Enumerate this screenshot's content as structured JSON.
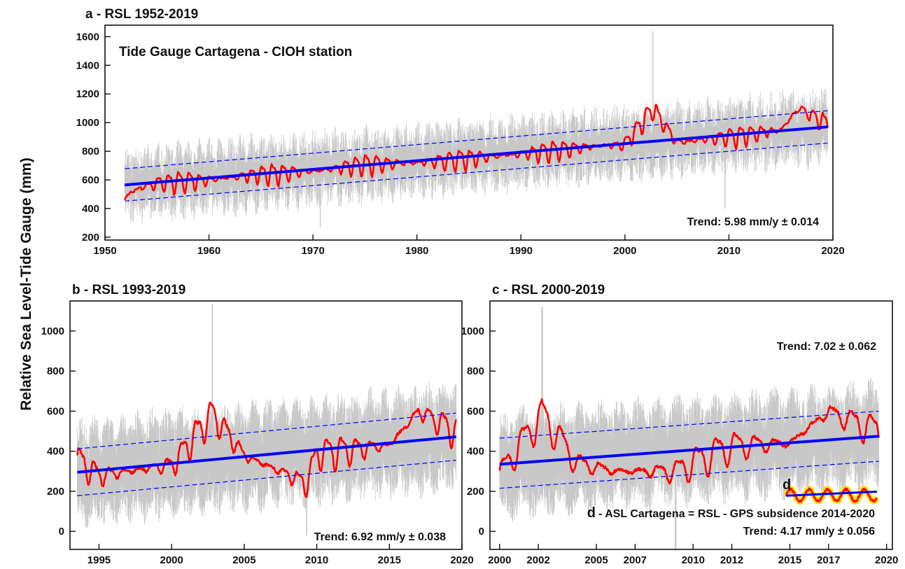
{
  "figure": {
    "ylabel": "Relative Sea Level-Tide Gauge (mm)"
  },
  "colors": {
    "raw": "#c8c8c8",
    "smoothed": "#ff0000",
    "trend": "#0000ff",
    "bounds": "#0000ff",
    "highlight": "#ffe000"
  },
  "chart_data": [
    {
      "panel": "a",
      "type": "line",
      "title": "a - RSL 1952-2019",
      "inner_label": "Tide Gauge Cartagena - CIOH station",
      "trend_text": "Trend: 5.98 mm/y ± 0.014",
      "xlim": [
        1950,
        2020
      ],
      "ylim": [
        180,
        1680
      ],
      "x_ticks": [
        1950,
        1960,
        1970,
        1980,
        1990,
        2000,
        2010,
        2020
      ],
      "y_ticks": [
        200,
        400,
        600,
        800,
        1000,
        1200,
        1400,
        1600
      ],
      "series": [
        {
          "role": "raw",
          "x_range": [
            1951.9,
            2019.5
          ],
          "spread": 230,
          "spikes": [
            [
              2002.7,
              1640
            ],
            [
              1970.7,
              270
            ],
            [
              2009.6,
              400
            ]
          ]
        },
        {
          "role": "smoothed",
          "x": [
            1951.9,
            1952.5,
            1955,
            1960,
            1965,
            1970,
            1975,
            1980,
            1985,
            1990,
            1995,
            2000,
            2002.7,
            2005,
            2010,
            2015,
            2016.7,
            2019.5
          ],
          "y": [
            460,
            520,
            580,
            600,
            640,
            660,
            710,
            720,
            750,
            780,
            820,
            850,
            1100,
            860,
            900,
            950,
            1100,
            990
          ],
          "amplitude": 70
        },
        {
          "role": "trend",
          "x": [
            1951.9,
            2019.5
          ],
          "y": [
            565,
            970
          ]
        },
        {
          "role": "upper_bound",
          "x": [
            1951.9,
            2019.5
          ],
          "y": [
            678,
            1083
          ]
        },
        {
          "role": "lower_bound",
          "x": [
            1951.9,
            2019.5
          ],
          "y": [
            452,
            857
          ]
        }
      ]
    },
    {
      "panel": "b",
      "type": "line",
      "title": "b - RSL 1993-2019",
      "trend_text": "Trend: 6.92 mm/y ± 0.038",
      "xlim": [
        1993,
        2020
      ],
      "ylim": [
        -90,
        1150
      ],
      "x_ticks": [
        1995,
        2000,
        2005,
        2010,
        2015,
        2020
      ],
      "y_ticks": [
        0,
        200,
        400,
        600,
        800,
        1000
      ],
      "series": [
        {
          "role": "raw",
          "x_range": [
            1993.5,
            2019.6
          ],
          "spread": 230,
          "spikes": [
            [
              2002.8,
              1130
            ],
            [
              2009.3,
              -20
            ]
          ]
        },
        {
          "role": "smoothed",
          "x": [
            1993.5,
            1995,
            2000,
            2002.8,
            2005,
            2009.3,
            2010,
            2015,
            2017,
            2019.6
          ],
          "y": [
            360,
            280,
            330,
            590,
            380,
            240,
            390,
            430,
            600,
            500
          ],
          "amplitude": 75
        },
        {
          "role": "trend",
          "x": [
            1993.5,
            2019.6
          ],
          "y": [
            295,
            472
          ]
        },
        {
          "role": "upper_bound",
          "x": [
            1993.5,
            2019.6
          ],
          "y": [
            412,
            590
          ]
        },
        {
          "role": "lower_bound",
          "x": [
            1993.5,
            2019.6
          ],
          "y": [
            178,
            355
          ]
        }
      ]
    },
    {
      "panel": "c",
      "type": "line",
      "title": "c - RSL 2000-2019",
      "trend_text": "Trend: 7.02 ± 0.062",
      "xlim": [
        1999.5,
        2020.3
      ],
      "ylim": [
        -90,
        1150
      ],
      "x_ticks": [
        2000,
        2002,
        2005,
        2007,
        2010,
        2012,
        2015,
        2017,
        2020
      ],
      "y_ticks": [
        0,
        200,
        400,
        600,
        800,
        1000
      ],
      "series": [
        {
          "role": "raw",
          "x_range": [
            2000.0,
            2019.6
          ],
          "spread": 230,
          "spikes": [
            [
              2002.2,
              1120
            ],
            [
              2009.1,
              -110
            ]
          ]
        },
        {
          "role": "smoothed",
          "x": [
            2000.0,
            2002.2,
            2004,
            2006,
            2009,
            2012,
            2015,
            2017,
            2019.6
          ],
          "y": [
            290,
            590,
            340,
            300,
            300,
            430,
            440,
            600,
            500
          ],
          "amplitude": 80
        },
        {
          "role": "trend",
          "x": [
            2000.0,
            2019.6
          ],
          "y": [
            335,
            475
          ]
        },
        {
          "role": "upper_bound",
          "x": [
            2000.0,
            2019.6
          ],
          "y": [
            465,
            600
          ]
        },
        {
          "role": "lower_bound",
          "x": [
            2000.0,
            2019.6
          ],
          "y": [
            215,
            350
          ]
        }
      ],
      "inset_d": {
        "marker": "d",
        "title": "- ASL Cartagena = RSL -  GPS subsidence 2014-2020",
        "trend_text": "Trend: 4.17 mm/y ± 0.056",
        "series": [
          {
            "role": "smoothed",
            "x_range": [
              2014.8,
              2019.5
            ],
            "y_center": 180,
            "amplitude": 30
          },
          {
            "role": "trend",
            "x": [
              2014.8,
              2019.5
            ],
            "y": [
              178,
              198
            ]
          }
        ]
      }
    }
  ]
}
